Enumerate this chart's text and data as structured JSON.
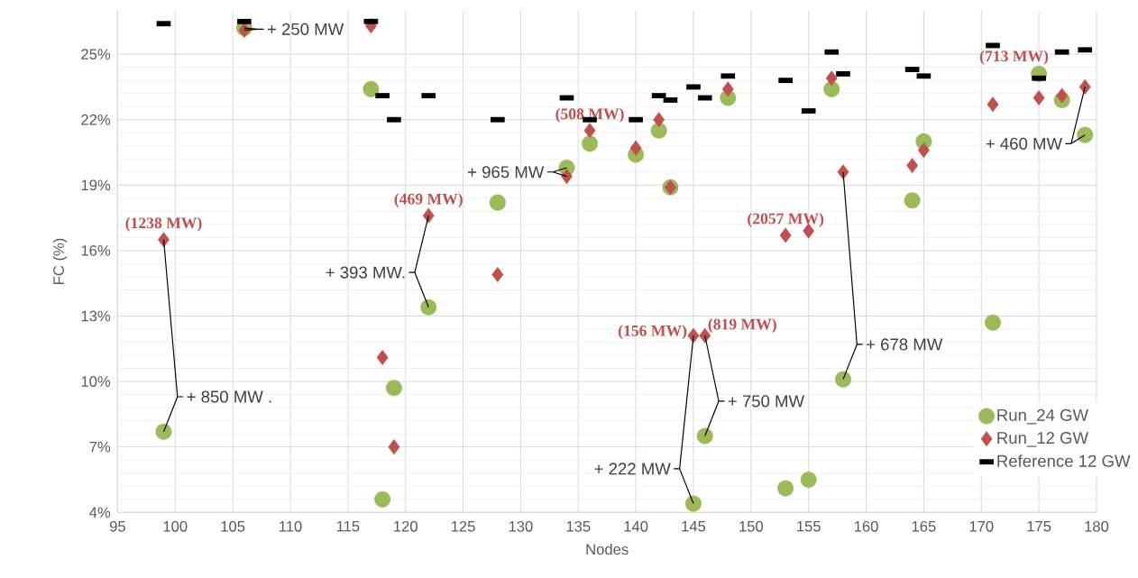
{
  "chart_data": {
    "type": "scatter",
    "xlabel": "Nodes",
    "ylabel": "FC (%)",
    "xlim": [
      95,
      180
    ],
    "xticks": [
      95,
      100,
      105,
      110,
      115,
      120,
      125,
      130,
      135,
      140,
      145,
      150,
      155,
      160,
      165,
      170,
      175,
      180
    ],
    "ylim": [
      4,
      27
    ],
    "yticks": [
      {
        "value": 4,
        "label": "4%"
      },
      {
        "value": 7,
        "label": "7%"
      },
      {
        "value": 10,
        "label": "10%"
      },
      {
        "value": 13,
        "label": "13%"
      },
      {
        "value": 16,
        "label": "16%"
      },
      {
        "value": 19,
        "label": "19%"
      },
      {
        "value": 22,
        "label": "22%"
      },
      {
        "value": 25,
        "label": "25%"
      }
    ],
    "grid": true,
    "legend": "bottom right",
    "x": [
      99,
      106,
      117,
      118,
      119,
      122,
      128,
      134,
      136,
      140,
      142,
      143,
      145,
      146,
      148,
      153,
      155,
      157,
      158,
      164,
      165,
      171,
      175,
      177,
      179
    ],
    "series": [
      {
        "name": "Run_24 GW",
        "color": "#9bbb59",
        "marker": "circle",
        "values": [
          7.7,
          26.2,
          23.4,
          4.6,
          9.7,
          13.4,
          18.2,
          19.8,
          20.9,
          20.4,
          21.5,
          18.9,
          4.4,
          7.5,
          23.0,
          5.1,
          5.5,
          23.4,
          10.1,
          18.3,
          21.0,
          12.7,
          24.1,
          22.9,
          21.3
        ]
      },
      {
        "name": "Run_12 GW",
        "color": "#c0504d",
        "marker": "diamond",
        "values": [
          16.5,
          26.1,
          26.3,
          11.1,
          7.0,
          17.6,
          14.9,
          19.4,
          21.5,
          20.7,
          22.0,
          18.9,
          12.1,
          12.1,
          23.4,
          16.7,
          16.9,
          23.9,
          19.6,
          19.9,
          20.6,
          22.7,
          23.0,
          23.1,
          23.5
        ]
      },
      {
        "name": "Reference 12 GW",
        "color": "#000000",
        "marker": "square",
        "values": [
          26.4,
          26.5,
          26.5,
          23.1,
          22.0,
          23.1,
          22.0,
          23.0,
          22.0,
          22.0,
          23.1,
          22.9,
          23.5,
          23.0,
          24.0,
          23.8,
          22.4,
          25.1,
          24.1,
          24.3,
          24.0,
          25.4,
          23.9,
          25.1,
          25.2
        ]
      }
    ],
    "annotations": [
      {
        "text": "(1238 MW)",
        "x": 99,
        "y": 16.5
      },
      {
        "text": "(469 MW)",
        "x": 122,
        "y": 17.6
      },
      {
        "text": "(508 MW)",
        "x": 136,
        "y": 21.5
      },
      {
        "text": "(2057 MW)",
        "x": 153,
        "y": 16.7
      },
      {
        "text": "(156 MW)",
        "x": 145,
        "y": 12.1
      },
      {
        "text": "(819 MW)",
        "x": 146,
        "y": 12.1
      },
      {
        "text": "(713 MW)",
        "x": 179,
        "y": 23.5
      },
      {
        "text": "+ 850 MW .",
        "x": 99,
        "y": 7.7
      },
      {
        "text": "+ 250 MW",
        "x": 106,
        "y": 26.2
      },
      {
        "text": "+ 393 MW.",
        "x": 122,
        "y": 13.4
      },
      {
        "text": "+ 965 MW",
        "x": 134,
        "y": 19.8
      },
      {
        "text": "+ 222 MW",
        "x": 145,
        "y": 4.4
      },
      {
        "text": "+ 750 MW",
        "x": 146,
        "y": 7.5
      },
      {
        "text": "+ 678 MW",
        "x": 158,
        "y": 10.1
      },
      {
        "text": "+ 460 MW",
        "x": 179,
        "y": 21.3
      }
    ]
  }
}
